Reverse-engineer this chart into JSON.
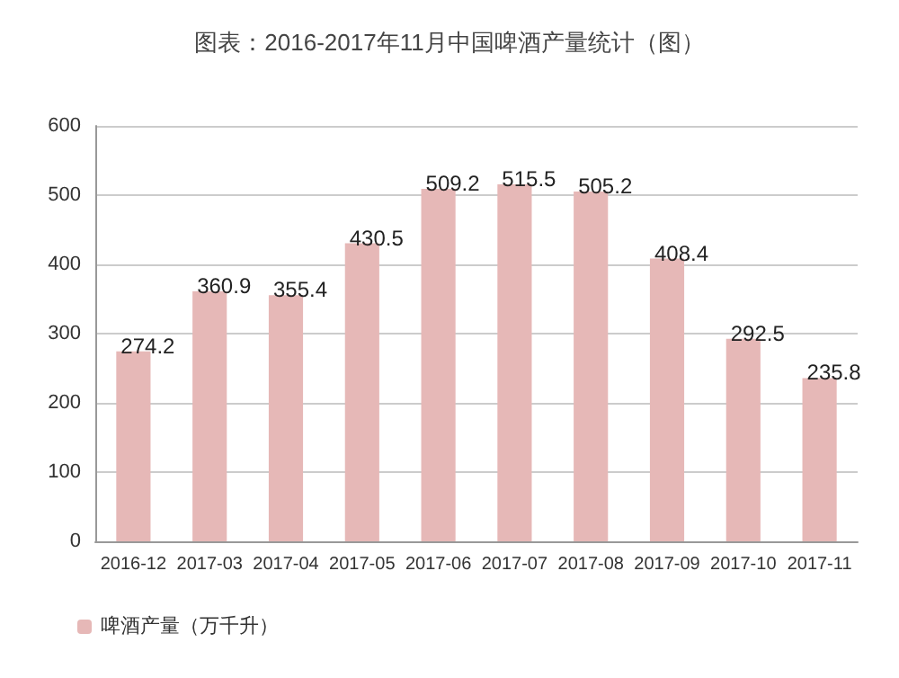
{
  "chart_data": {
    "type": "bar",
    "title": "图表：2016-2017年11月中国啤酒产量统计（图）",
    "categories": [
      "2016-12",
      "2017-03",
      "2017-04",
      "2017-05",
      "2017-06",
      "2017-07",
      "2017-08",
      "2017-09",
      "2017-10",
      "2017-11"
    ],
    "series": [
      {
        "name": "啤酒产量（万千升）",
        "color": "#e6b8b7",
        "values": [
          274.2,
          360.9,
          355.4,
          430.5,
          509.2,
          515.5,
          505.2,
          408.4,
          292.5,
          235.8
        ]
      }
    ],
    "ylim": [
      0,
      600
    ],
    "yticks": [
      0,
      100,
      200,
      300,
      400,
      500,
      600
    ],
    "grid": "y",
    "legend": "bottom left",
    "data_labels": true
  }
}
